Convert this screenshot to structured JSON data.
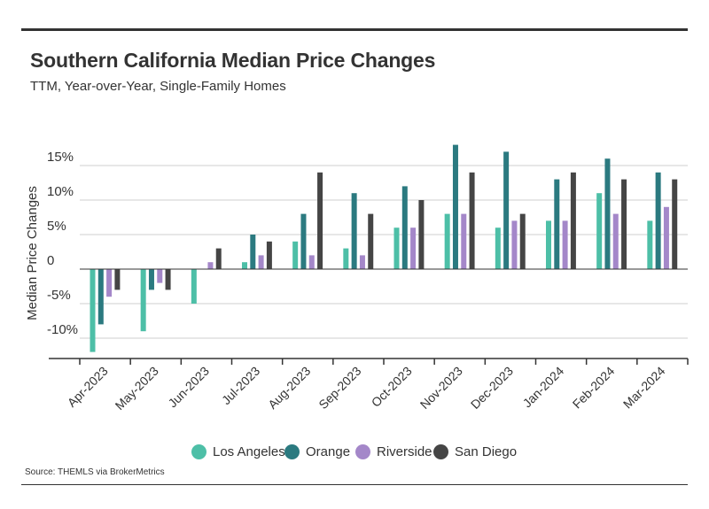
{
  "header": {
    "title": "Southern California Median Price Changes",
    "subtitle": "TTM, Year-over-Year, Single-Family Homes"
  },
  "footer": {
    "source": "Source: THEMLS via BrokerMetrics"
  },
  "colors": {
    "los_angeles": "#4dbfa7",
    "orange": "#2b7a80",
    "riverside": "#a487c9",
    "san_diego": "#454545"
  },
  "chart_data": {
    "type": "bar",
    "title": "Southern California Median Price Changes",
    "subtitle": "TTM, Year-over-Year, Single-Family Homes",
    "xlabel": "",
    "ylabel": "Median Price Changes",
    "ylim": [
      -13,
      18
    ],
    "yticks": [
      -10,
      -5,
      0,
      5,
      10,
      15
    ],
    "ytick_labels": [
      "-10%",
      "-5%",
      "0",
      "5%",
      "10%",
      "15%"
    ],
    "grid": true,
    "legend_position": "bottom",
    "categories": [
      "Apr-2023",
      "May-2023",
      "Jun-2023",
      "Jul-2023",
      "Aug-2023",
      "Sep-2023",
      "Oct-2023",
      "Nov-2023",
      "Dec-2023",
      "Jan-2024",
      "Feb-2024",
      "Mar-2024"
    ],
    "series": [
      {
        "name": "Los Angeles",
        "color": "#4dbfa7",
        "values": [
          -12,
          -9,
          -5,
          1,
          4,
          3,
          6,
          8,
          6,
          7,
          11,
          7
        ]
      },
      {
        "name": "Orange",
        "color": "#2b7a80",
        "values": [
          -8,
          -3,
          0,
          5,
          8,
          11,
          12,
          18,
          17,
          13,
          16,
          14
        ]
      },
      {
        "name": "Riverside",
        "color": "#a487c9",
        "values": [
          -4,
          -2,
          1,
          2,
          2,
          2,
          6,
          8,
          7,
          7,
          8,
          9
        ]
      },
      {
        "name": "San Diego",
        "color": "#454545",
        "values": [
          -3,
          -3,
          3,
          4,
          14,
          8,
          10,
          14,
          8,
          14,
          13,
          13
        ]
      }
    ]
  }
}
